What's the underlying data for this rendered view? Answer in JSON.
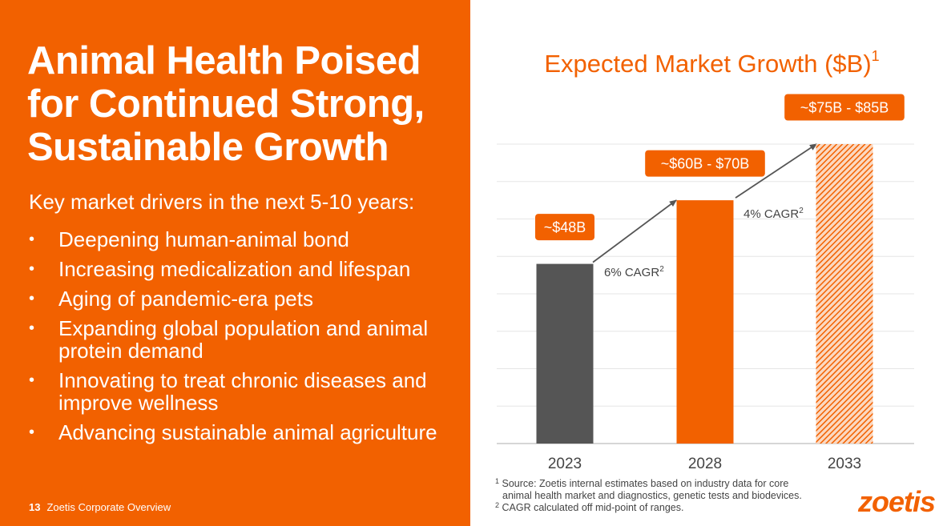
{
  "slide": {
    "title_lines": [
      "Animal Health Poised",
      "for Continued Strong,",
      "Sustainable Growth"
    ],
    "subtitle": "Key market drivers in the next 5-10 years:",
    "bullet_symbol": "•",
    "bullets": [
      "Deepening human-animal bond",
      "Increasing medicalization and lifespan",
      "Aging of pandemic-era pets",
      "Expanding global population and animal protein demand",
      "Innovating to treat chronic diseases and improve wellness",
      "Advancing sustainable animal agriculture"
    ],
    "page_number": "13",
    "footer_text": "Zoetis Corporate Overview",
    "footnotes": {
      "note1_marker": "1",
      "note1_line1": "Source: Zoetis internal estimates based on industry data for core",
      "note1_line2": "animal health market and diagnostics, genetic tests and biodevices.",
      "note2_marker": "2",
      "note2_text": "CAGR calculated off mid-point of ranges."
    },
    "logo_text": "zoetis",
    "colors": {
      "brand_orange": "#f26100",
      "bar_gray": "#555555"
    }
  },
  "chart_data": {
    "type": "bar",
    "title": "Expected Market Growth ($B)",
    "title_superscript": "1",
    "categories": [
      "2023",
      "2028",
      "2033"
    ],
    "values": [
      48,
      65,
      80
    ],
    "data_labels": [
      "~$48B",
      "~$60B - $70B",
      "~$75B - $85B"
    ],
    "bar_styles": [
      "solid-gray",
      "solid-orange",
      "hatched-orange"
    ],
    "annotations": [
      {
        "text": "6% CAGR",
        "superscript": "2",
        "from": "2023",
        "to": "2028"
      },
      {
        "text": "4% CAGR",
        "superscript": "2",
        "from": "2028",
        "to": "2033"
      }
    ],
    "ylim": [
      0,
      80
    ],
    "grid": true,
    "xlabel": "",
    "ylabel": ""
  }
}
